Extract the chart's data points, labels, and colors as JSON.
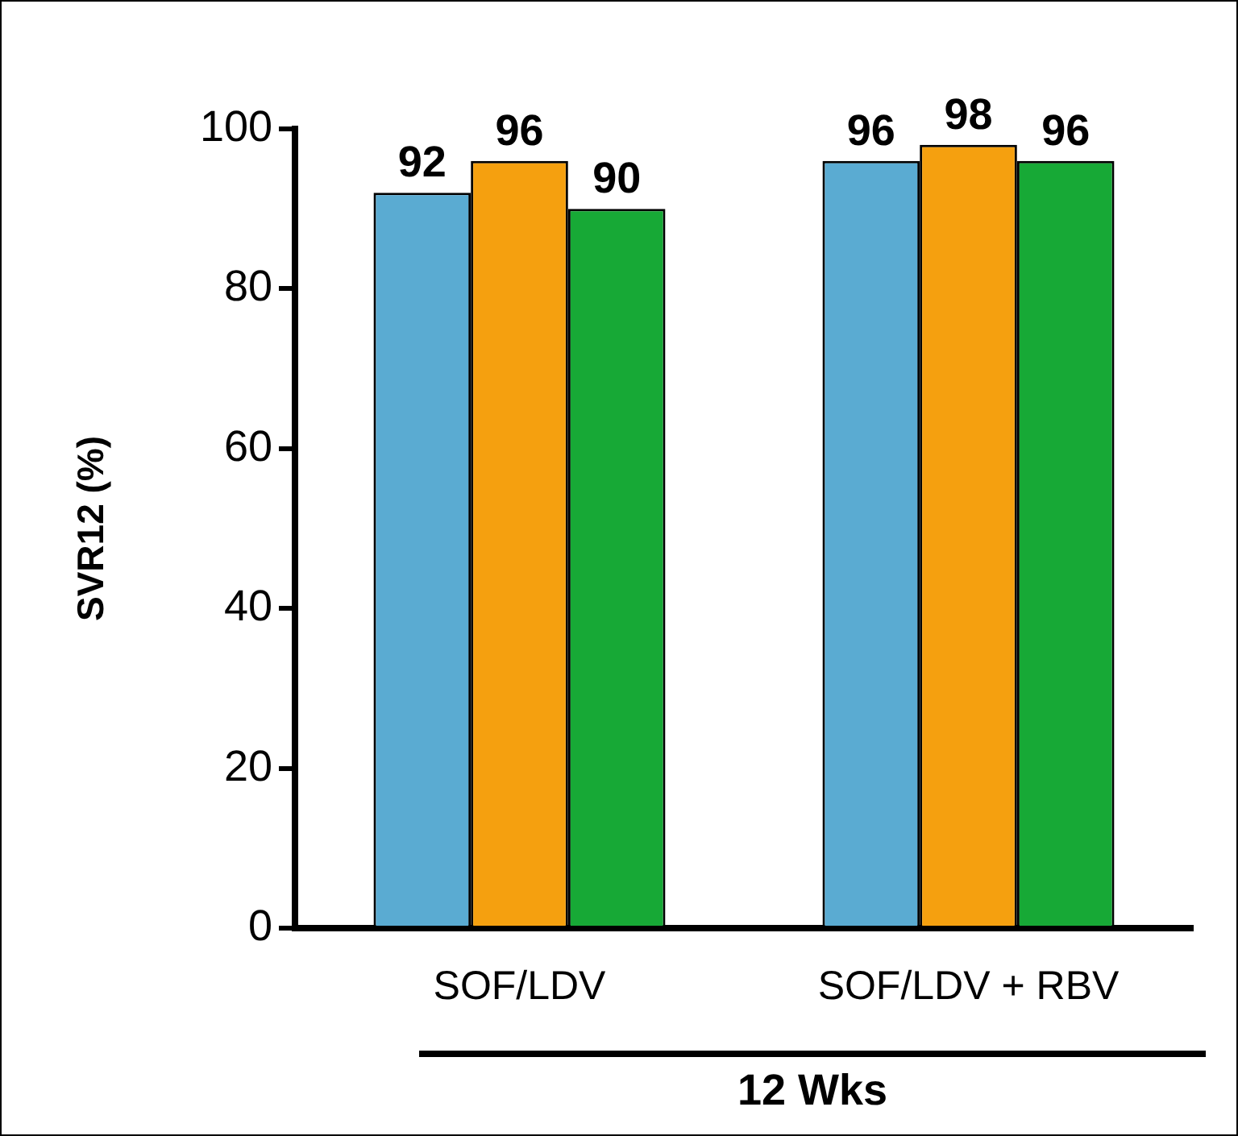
{
  "chart_data": {
    "type": "bar",
    "ylabel": "SVR12 (%)",
    "categories": [
      "SOF/LDV",
      "SOF/LDV + RBV"
    ],
    "series": [
      {
        "color": "#5aabd2",
        "values": [
          92,
          96
        ]
      },
      {
        "color": "#f5a00f",
        "values": [
          96,
          98
        ]
      },
      {
        "color": "#17a936",
        "values": [
          90,
          96
        ]
      }
    ],
    "ylim": [
      0,
      100
    ],
    "yticks": [
      0,
      20,
      40,
      60,
      80,
      100
    ],
    "grid": false,
    "legend": false,
    "data_labels": true,
    "annotations": [
      "12 Wks"
    ]
  }
}
